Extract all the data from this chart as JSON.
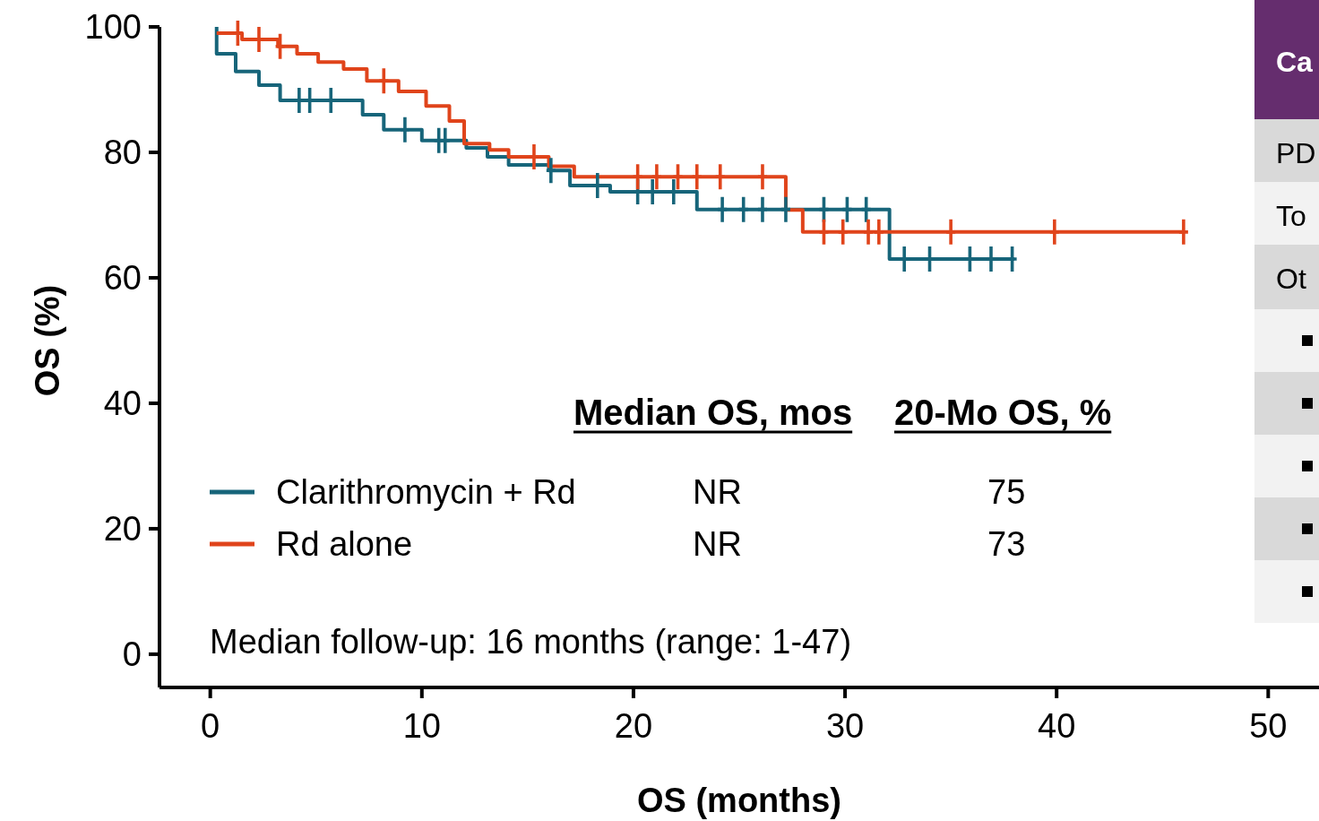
{
  "chart_data": {
    "type": "step",
    "xlabel": "OS (months)",
    "ylabel": "OS (%)",
    "xlim": [
      -2.4,
      52.4
    ],
    "ylim": [
      -5.3,
      100
    ],
    "xticks": [
      0,
      10,
      20,
      30,
      40,
      50
    ],
    "yticks": [
      0,
      20,
      40,
      60,
      80,
      100
    ],
    "grid": false,
    "legend": "bottom",
    "series": [
      {
        "name": "Clarithromycin + Rd",
        "marker": "none",
        "color": "#17657a",
        "x": [
          0.3,
          0.3,
          1.2,
          2.3,
          3.3,
          7.2,
          8.2,
          10,
          12.1,
          13.1,
          14.1,
          16,
          17,
          18.9,
          23,
          32.1,
          38
        ],
        "values": [
          100,
          95.7,
          92.9,
          90.7,
          88.3,
          86,
          83.6,
          81.9,
          80.7,
          79.3,
          78,
          77.1,
          74.7,
          73.7,
          70.9,
          63,
          63
        ]
      },
      {
        "name": "Rd alone",
        "marker": "none",
        "color": "#e0441b",
        "x": [
          0.3,
          1.5,
          3.2,
          4.1,
          5.1,
          6.3,
          7.4,
          8.9,
          10.2,
          11.3,
          12,
          13.2,
          14.1,
          16,
          17.2,
          27.2,
          28,
          46
        ],
        "values": [
          99,
          98,
          96.9,
          95.7,
          94.4,
          93.3,
          91.4,
          89.7,
          87.4,
          85,
          81.4,
          80.4,
          79.3,
          77.8,
          76.1,
          70.8,
          67.3,
          67.3
        ]
      },
      {
        "type": "scatter",
        "marker": "cross",
        "color": "#17657a",
        "x": [
          4.2,
          4.7,
          5.7,
          9.2,
          10.8,
          11.1,
          16.1,
          18.3,
          20.2,
          20.9,
          21.9,
          24.2,
          25.2,
          26.1,
          27.2,
          29,
          30.1,
          31,
          32.8,
          34,
          35.9,
          36.9,
          37.9
        ],
        "values": [
          88.3,
          88.3,
          88.3,
          83.6,
          81.9,
          81.9,
          77.1,
          74.7,
          73.7,
          73.7,
          73.7,
          70.9,
          70.9,
          70.9,
          70.9,
          70.9,
          70.9,
          70.9,
          63,
          63,
          63,
          63,
          63
        ]
      },
      {
        "type": "scatter",
        "marker": "cross",
        "color": "#e0441b",
        "x": [
          1.3,
          2.3,
          3.3,
          8.2,
          15.3,
          20.2,
          21.1,
          22.1,
          23,
          24.1,
          26.1,
          29,
          29.9,
          31.1,
          31.6,
          35,
          39.9,
          46
        ],
        "values": [
          99,
          98,
          96.9,
          91.4,
          79.3,
          76.1,
          76.1,
          76.1,
          76.1,
          76.1,
          76.1,
          67.3,
          67.3,
          67.3,
          67.3,
          67.3,
          67.3,
          67.3
        ]
      }
    ],
    "annotations": [
      "Median OS, mos",
      "20-Mo OS, %",
      "NR",
      "75",
      "NR",
      "73",
      "Median follow-up: 16 months (range: 1-47)",
      "Ca",
      "PD",
      "To",
      "Ot"
    ]
  }
}
